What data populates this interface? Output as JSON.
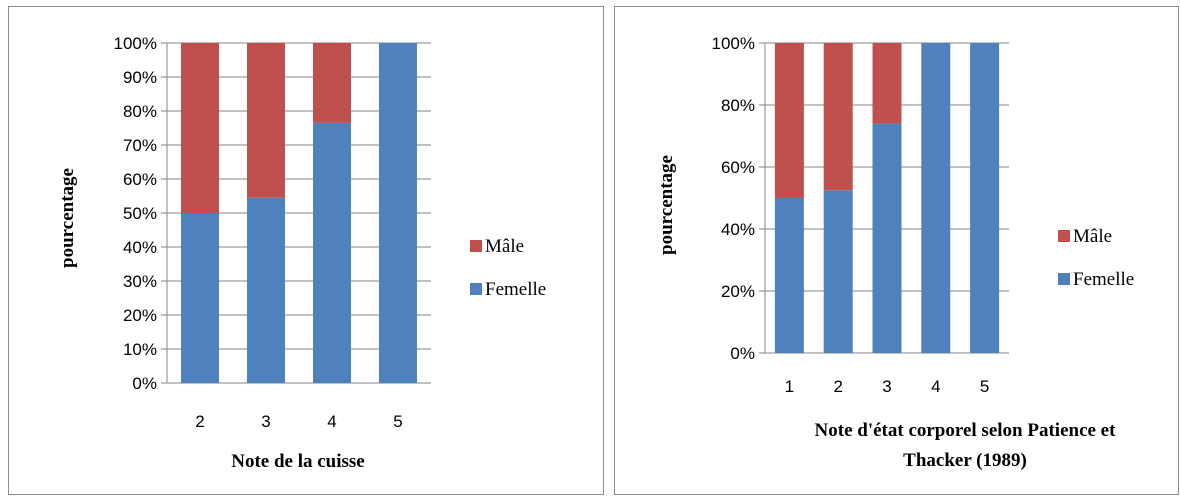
{
  "chart_data": [
    {
      "type": "bar",
      "stacked": true,
      "categories": [
        "2",
        "3",
        "4",
        "5"
      ],
      "series": [
        {
          "name": "Femelle",
          "color": "#4f81bd",
          "values": [
            50,
            54.5,
            76.5,
            100
          ]
        },
        {
          "name": "Mâle",
          "color": "#c0504d",
          "values": [
            50,
            45.5,
            23.5,
            0
          ]
        }
      ],
      "xlabel": "Note de la cuisse",
      "ylabel": "pourcentage",
      "ylim": [
        0,
        100
      ],
      "yticks": [
        "0%",
        "10%",
        "20%",
        "30%",
        "40%",
        "50%",
        "60%",
        "70%",
        "80%",
        "90%",
        "100%"
      ],
      "grid": true,
      "legend": "right"
    },
    {
      "type": "bar",
      "stacked": true,
      "categories": [
        "1",
        "2",
        "3",
        "4",
        "5"
      ],
      "series": [
        {
          "name": "Femelle",
          "color": "#4f81bd",
          "values": [
            50,
            52.5,
            74,
            100,
            100
          ]
        },
        {
          "name": "Mâle",
          "color": "#c0504d",
          "values": [
            50,
            47.5,
            26,
            0,
            0
          ]
        }
      ],
      "xlabel": [
        "Note d'état corporel selon Patience et",
        "Thacker (1989)"
      ],
      "ylabel": "pourcentage",
      "ylim": [
        0,
        100
      ],
      "yticks": [
        "0%",
        "20%",
        "40%",
        "60%",
        "80%",
        "100%"
      ],
      "grid": true,
      "legend": "right"
    }
  ]
}
